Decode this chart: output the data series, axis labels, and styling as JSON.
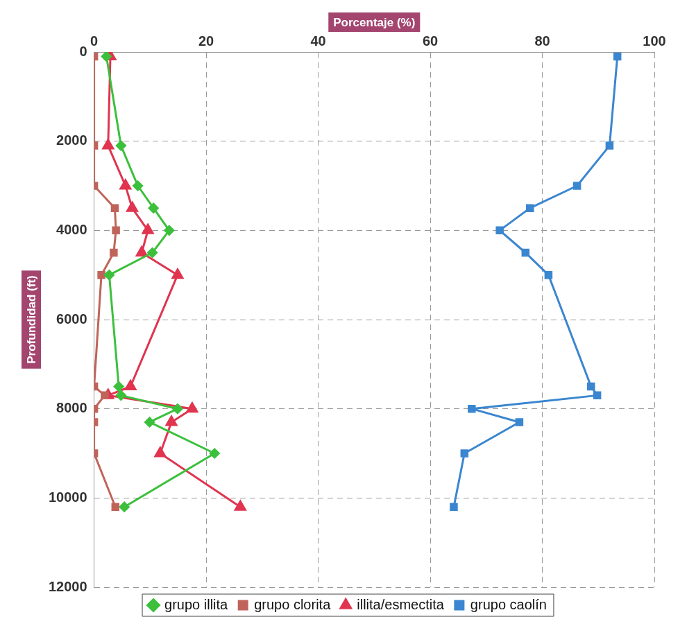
{
  "chart_data": {
    "type": "line",
    "xlabel": "Porcentaje (%)",
    "ylabel": "Profundidad (ft)",
    "xlim": [
      0,
      100
    ],
    "xticks": [
      0,
      20,
      40,
      60,
      80,
      100
    ],
    "ylim": [
      12000,
      0
    ],
    "yticks": [
      0,
      2000,
      4000,
      6000,
      8000,
      10000,
      12000
    ],
    "grid": true,
    "legend": "bottom",
    "line_style": "solid",
    "series": [
      {
        "name": "grupo illita",
        "color": "#3cc03c",
        "marker": "diamond",
        "x": [
          2.2,
          4.8,
          7.8,
          10.6,
          13.4,
          10.4,
          2.7,
          4.4,
          4.8,
          14.9,
          9.9,
          21.5,
          5.4
        ],
        "values": [
          100,
          2100,
          3000,
          3500,
          4000,
          4500,
          5000,
          7500,
          7700,
          8000,
          8300,
          9000,
          10200
        ]
      },
      {
        "name": "grupo clorita",
        "color": "#c0645a",
        "marker": "square",
        "x": [
          0,
          0,
          0,
          3.7,
          3.9,
          3.5,
          1.3,
          0,
          1.9,
          0,
          0,
          0,
          3.8
        ],
        "values": [
          100,
          2100,
          3000,
          3500,
          4000,
          4500,
          5000,
          7500,
          7700,
          8000,
          8300,
          9000,
          10200
        ]
      },
      {
        "name": "illita/esmectita",
        "color": "#e0344f",
        "marker": "triangle",
        "x": [
          2.9,
          2.5,
          5.6,
          6.8,
          9.6,
          8.5,
          14.9,
          6.5,
          2.5,
          17.5,
          13.8,
          11.8,
          26.1
        ],
        "values": [
          100,
          2100,
          3000,
          3500,
          4000,
          4500,
          5000,
          7500,
          7700,
          8000,
          8300,
          9000,
          10200
        ]
      },
      {
        "name": "grupo caolín",
        "color": "#3a86d0",
        "marker": "square",
        "x": [
          93.4,
          92,
          86.2,
          77.8,
          72.4,
          77,
          81.1,
          88.7,
          89.8,
          67.4,
          75.9,
          66.1,
          64.2
        ],
        "values": [
          100,
          2100,
          3000,
          3500,
          4000,
          4500,
          5000,
          7500,
          7700,
          8000,
          8300,
          9000,
          10200
        ]
      }
    ]
  }
}
